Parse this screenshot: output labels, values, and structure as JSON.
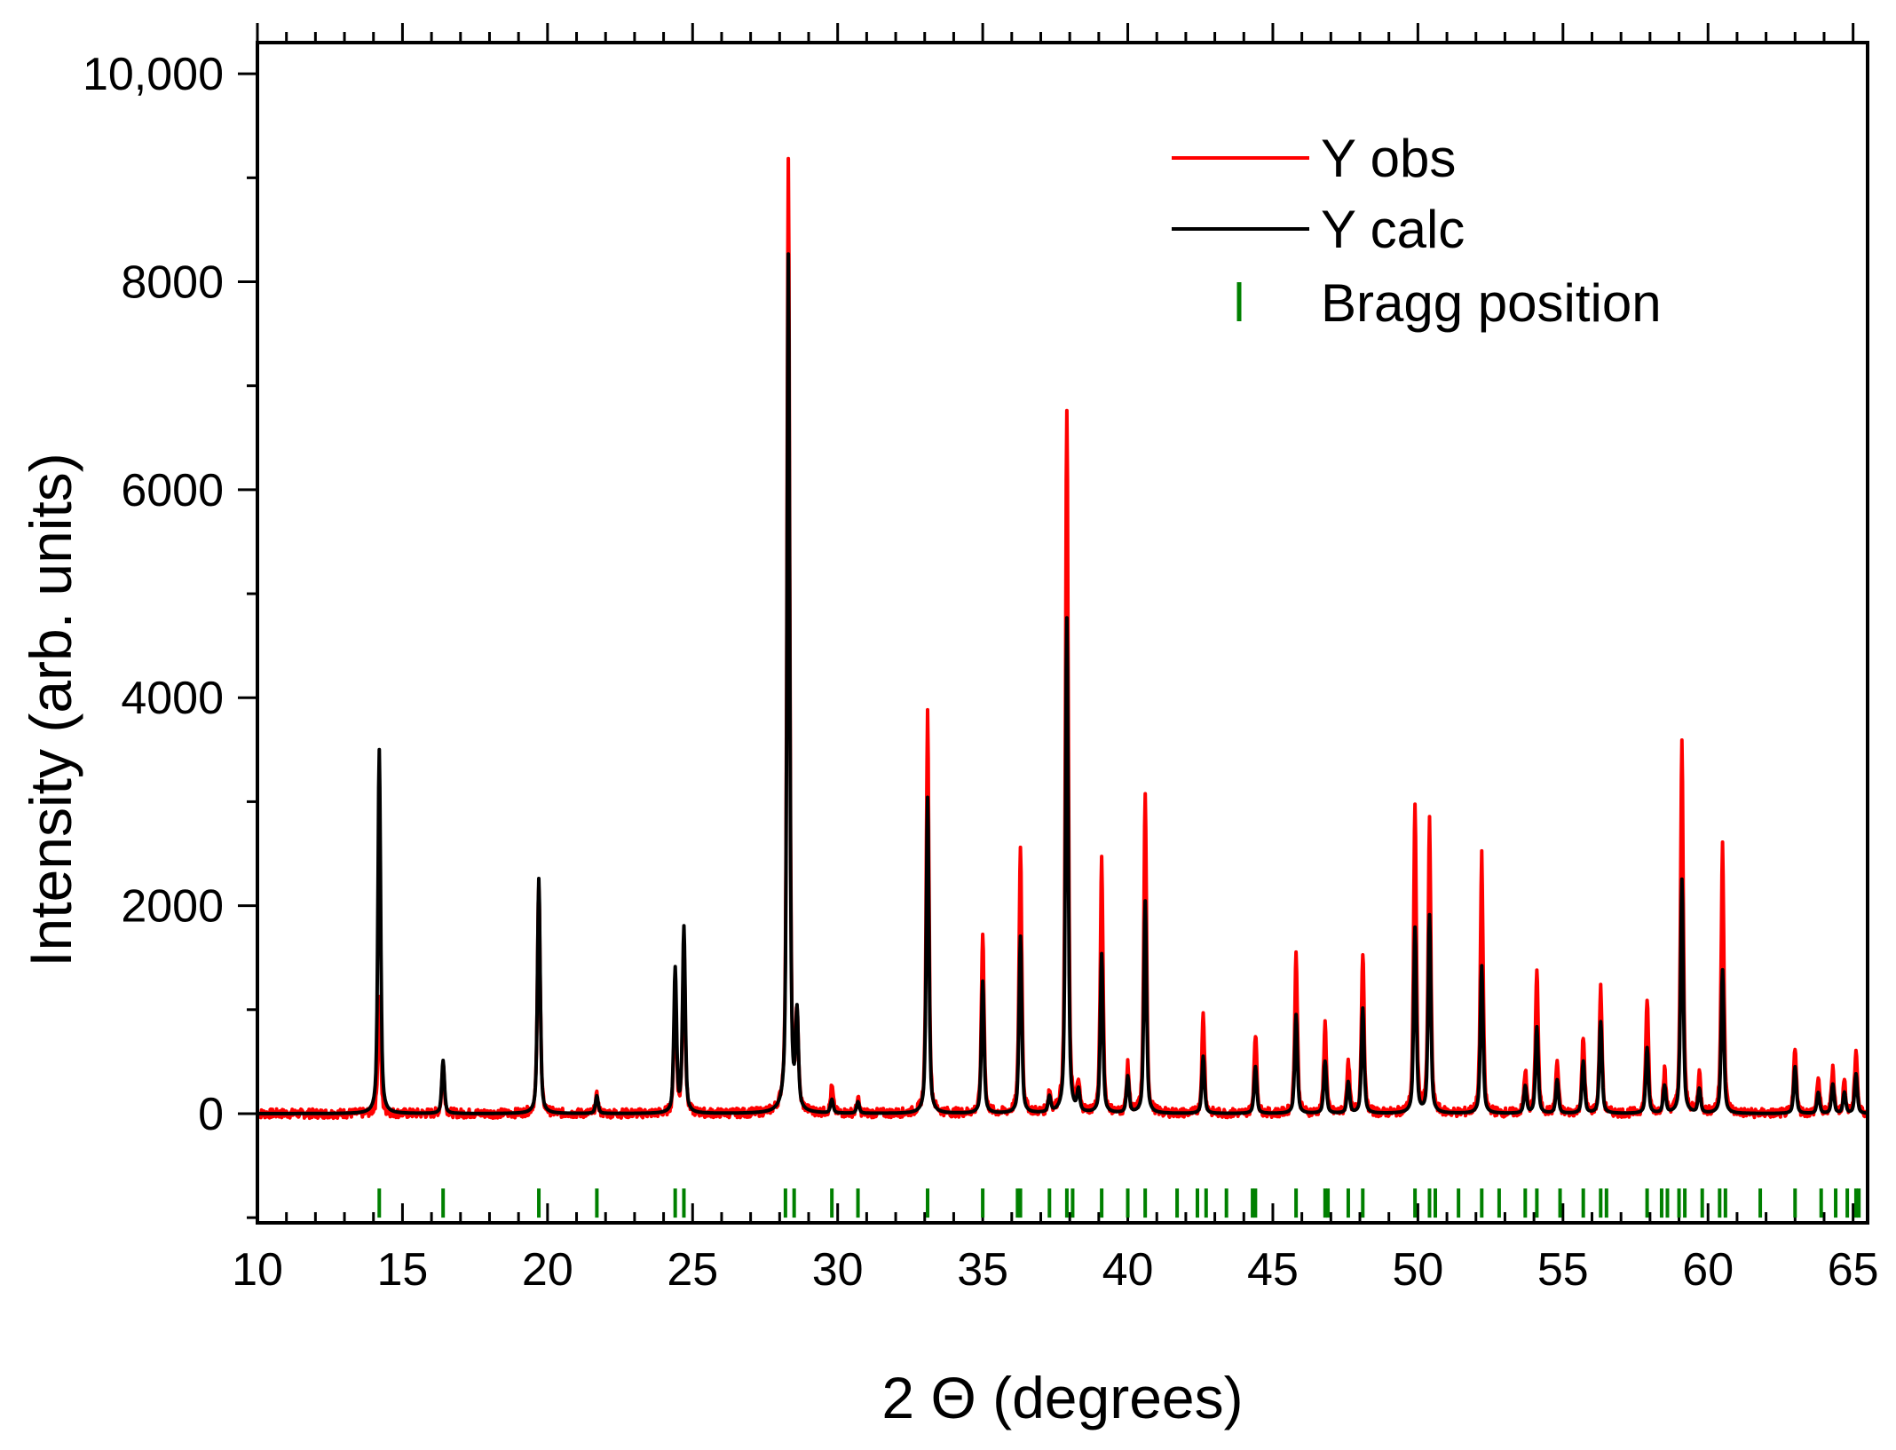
{
  "chart_data": {
    "type": "line",
    "xlabel": "2 Θ (degrees)",
    "ylabel": "Intensity (arb. units)",
    "xlim": [
      10,
      65.5
    ],
    "ylim": [
      -1050,
      10300
    ],
    "x_ticks": [
      10,
      15,
      20,
      25,
      30,
      35,
      40,
      45,
      50,
      55,
      60,
      65
    ],
    "x_tick_labels": [
      "10",
      "15",
      "20",
      "25",
      "30",
      "35",
      "40",
      "45",
      "50",
      "55",
      "60",
      "65"
    ],
    "y_ticks": [
      0,
      2000,
      4000,
      6000,
      8000,
      10000
    ],
    "y_tick_labels": [
      "0",
      "2000",
      "4000",
      "6000",
      "8000",
      "10,000"
    ],
    "legend": {
      "position": "top-right",
      "entries": [
        {
          "label": "Y obs",
          "color": "#ff0000",
          "marker": "line"
        },
        {
          "label": "Y calc",
          "color": "#000000",
          "marker": "line"
        },
        {
          "label": "Bragg position",
          "color": "#008000",
          "marker": "tick"
        }
      ]
    },
    "series": [
      {
        "name": "Y obs",
        "color": "#ff0000",
        "peaks": [
          [
            14.2,
            1150
          ],
          [
            16.4,
            480
          ],
          [
            19.7,
            2230
          ],
          [
            21.7,
            170
          ],
          [
            24.4,
            1120
          ],
          [
            24.7,
            1620
          ],
          [
            28.3,
            9150
          ],
          [
            28.6,
            900
          ],
          [
            29.8,
            250
          ],
          [
            30.7,
            130
          ],
          [
            33.1,
            3850
          ],
          [
            35.0,
            1730
          ],
          [
            36.3,
            2580
          ],
          [
            37.3,
            200
          ],
          [
            37.9,
            6750
          ],
          [
            38.3,
            250
          ],
          [
            39.1,
            2420
          ],
          [
            40.0,
            450
          ],
          [
            40.6,
            3030
          ],
          [
            42.6,
            950
          ],
          [
            44.4,
            780
          ],
          [
            45.8,
            1540
          ],
          [
            46.8,
            860
          ],
          [
            47.6,
            520
          ],
          [
            48.1,
            1560
          ],
          [
            49.9,
            2980
          ],
          [
            50.4,
            2790
          ],
          [
            52.2,
            2480
          ],
          [
            53.7,
            400
          ],
          [
            54.1,
            1390
          ],
          [
            54.8,
            500
          ],
          [
            55.7,
            730
          ],
          [
            56.3,
            1200
          ],
          [
            57.9,
            1100
          ],
          [
            58.5,
            400
          ],
          [
            59.1,
            3560
          ],
          [
            59.7,
            380
          ],
          [
            60.5,
            2600
          ],
          [
            63.0,
            650
          ],
          [
            63.8,
            350
          ],
          [
            64.3,
            450
          ],
          [
            64.7,
            300
          ],
          [
            65.1,
            620
          ]
        ]
      },
      {
        "name": "Y calc",
        "color": "#000000",
        "peaks": [
          [
            14.2,
            3500
          ],
          [
            16.4,
            510
          ],
          [
            19.7,
            2260
          ],
          [
            21.7,
            170
          ],
          [
            24.4,
            1380
          ],
          [
            24.7,
            1780
          ],
          [
            28.3,
            8250
          ],
          [
            28.6,
            900
          ],
          [
            29.8,
            130
          ],
          [
            30.7,
            110
          ],
          [
            33.1,
            3040
          ],
          [
            35.0,
            1270
          ],
          [
            36.3,
            1700
          ],
          [
            37.3,
            150
          ],
          [
            37.9,
            4760
          ],
          [
            38.3,
            200
          ],
          [
            39.1,
            1530
          ],
          [
            40.0,
            350
          ],
          [
            40.6,
            2040
          ],
          [
            42.6,
            550
          ],
          [
            44.4,
            450
          ],
          [
            45.8,
            950
          ],
          [
            46.8,
            500
          ],
          [
            47.6,
            300
          ],
          [
            48.1,
            1010
          ],
          [
            49.9,
            1780
          ],
          [
            50.4,
            1900
          ],
          [
            52.2,
            1420
          ],
          [
            53.7,
            260
          ],
          [
            54.1,
            830
          ],
          [
            54.8,
            320
          ],
          [
            55.7,
            500
          ],
          [
            56.3,
            880
          ],
          [
            57.9,
            630
          ],
          [
            58.5,
            260
          ],
          [
            59.1,
            2250
          ],
          [
            59.7,
            230
          ],
          [
            60.5,
            1380
          ],
          [
            63.0,
            450
          ],
          [
            63.8,
            200
          ],
          [
            64.3,
            280
          ],
          [
            64.7,
            200
          ],
          [
            65.1,
            380
          ]
        ]
      }
    ],
    "bragg_positions": [
      14.2,
      16.4,
      19.7,
      21.7,
      24.4,
      24.7,
      28.2,
      28.5,
      29.8,
      30.7,
      33.1,
      35.0,
      36.2,
      36.3,
      37.3,
      37.9,
      38.1,
      39.1,
      40.0,
      40.6,
      41.7,
      42.4,
      42.7,
      43.4,
      44.3,
      44.4,
      45.8,
      46.8,
      46.9,
      47.6,
      48.1,
      49.9,
      50.4,
      50.6,
      51.4,
      52.2,
      52.8,
      53.7,
      54.1,
      54.9,
      55.7,
      56.3,
      56.5,
      57.9,
      58.4,
      58.6,
      59.0,
      59.2,
      59.8,
      60.4,
      60.6,
      61.8,
      63.0,
      63.9,
      64.4,
      64.8,
      65.1,
      65.2
    ]
  }
}
